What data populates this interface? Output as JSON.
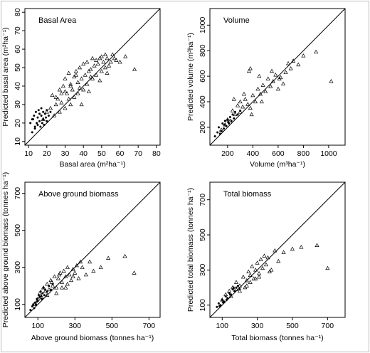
{
  "chart_data": [
    {
      "type": "scatter",
      "title": "Basal Area",
      "xlabel": "Basal area (m²ha⁻¹)",
      "ylabel": "Predicted basal area (m²ha⁻¹)",
      "xlim": [
        8,
        82
      ],
      "ylim": [
        8,
        82
      ],
      "xticks": [
        10,
        20,
        30,
        40,
        50,
        60,
        70,
        80
      ],
      "yticks": [
        10,
        20,
        30,
        40,
        50,
        60,
        70,
        80
      ],
      "reference_line": "1:1",
      "series": [
        {
          "marker": "dot",
          "x": [
            11,
            12,
            12.5,
            13,
            13.5,
            14,
            14.5,
            15,
            15,
            15.5,
            16,
            16,
            16.5,
            17,
            17,
            17.5,
            18,
            18,
            18.5,
            19,
            19.5,
            20,
            20,
            21,
            22,
            12,
            13.5
          ],
          "y": [
            20,
            15,
            22,
            24,
            18,
            26,
            20,
            19,
            23,
            27,
            25,
            21,
            18,
            24,
            28,
            20,
            22,
            26,
            19,
            25,
            23,
            27,
            21,
            24,
            26,
            22,
            17
          ]
        },
        {
          "marker": "triangle",
          "x": [
            18,
            20,
            22,
            23,
            24,
            25,
            26,
            27,
            27,
            28,
            29,
            30,
            30,
            31,
            32,
            32,
            33,
            33,
            34,
            35,
            35,
            36,
            37,
            37,
            38,
            38,
            39,
            40,
            40,
            41,
            42,
            42,
            43,
            43,
            44,
            45,
            45,
            46,
            47,
            47,
            48,
            49,
            50,
            50,
            51,
            52,
            52,
            53,
            54,
            55,
            56,
            57,
            58,
            60,
            63,
            68,
            30,
            33,
            36,
            44,
            49,
            53,
            25,
            28,
            39
          ],
          "y": [
            22,
            26,
            28,
            35,
            24,
            30,
            33,
            26,
            38,
            31,
            40,
            28,
            44,
            36,
            33,
            47,
            41,
            30,
            38,
            45,
            34,
            48,
            42,
            36,
            50,
            39,
            44,
            52,
            38,
            46,
            41,
            53,
            48,
            37,
            49,
            55,
            44,
            51,
            46,
            54,
            52,
            43,
            48,
            56,
            53,
            50,
            57,
            55,
            51,
            53,
            57,
            55,
            54,
            53,
            56,
            49,
            37,
            40,
            46,
            45,
            55,
            47,
            34,
            36,
            30
          ]
        }
      ]
    },
    {
      "type": "scatter",
      "title": "Volume",
      "xlabel": "Volume (m³ha⁻¹)",
      "ylabel": "Predicted volume (m³ha⁻¹)",
      "xlim": [
        60,
        1130
      ],
      "ylim": [
        60,
        1130
      ],
      "xticks": [
        200,
        400,
        600,
        800,
        1000
      ],
      "yticks": [
        200,
        400,
        600,
        800,
        1000
      ],
      "reference_line": "1:1",
      "series": [
        {
          "marker": "dot",
          "x": [
            100,
            120,
            130,
            150,
            160,
            170,
            180,
            190,
            200,
            210,
            220,
            230,
            240,
            250,
            260,
            280,
            300,
            140,
            175,
            205
          ],
          "y": [
            130,
            160,
            200,
            170,
            230,
            190,
            250,
            210,
            260,
            230,
            280,
            250,
            300,
            270,
            320,
            300,
            330,
            150,
            220,
            240
          ]
        },
        {
          "marker": "triangle",
          "x": [
            150,
            180,
            200,
            220,
            240,
            260,
            280,
            300,
            300,
            320,
            340,
            360,
            370,
            380,
            400,
            420,
            440,
            450,
            460,
            480,
            500,
            520,
            540,
            560,
            580,
            600,
            620,
            640,
            660,
            680,
            700,
            720,
            760,
            800,
            900,
            1020,
            380,
            390,
            250,
            330,
            470,
            550,
            610
          ],
          "y": [
            180,
            220,
            260,
            250,
            330,
            300,
            370,
            320,
            400,
            360,
            420,
            380,
            640,
            660,
            450,
            400,
            500,
            600,
            460,
            530,
            480,
            580,
            520,
            560,
            610,
            500,
            590,
            540,
            630,
            700,
            660,
            720,
            690,
            760,
            790,
            560,
            350,
            300,
            420,
            460,
            400,
            640,
            580
          ]
        }
      ]
    },
    {
      "type": "scatter",
      "title": "Above ground biomass",
      "xlabel": "Above ground biomass (tonnes ha⁻¹)",
      "ylabel": "Predicted above ground biomass (tonnes ha⁻¹)",
      "xlim": [
        30,
        760
      ],
      "ylim": [
        30,
        760
      ],
      "xticks": [
        100,
        300,
        500,
        700
      ],
      "yticks": [
        100,
        300,
        500,
        700
      ],
      "reference_line": "1:1",
      "series": [
        {
          "marker": "dot",
          "x": [
            60,
            70,
            80,
            85,
            90,
            95,
            100,
            105,
            110,
            115,
            120,
            125,
            130,
            135,
            140,
            150,
            160,
            170,
            180,
            75,
            95,
            118
          ],
          "y": [
            70,
            90,
            80,
            110,
            100,
            130,
            120,
            150,
            140,
            170,
            130,
            160,
            190,
            150,
            180,
            170,
            200,
            180,
            210,
            100,
            115,
            145
          ]
        },
        {
          "marker": "triangle",
          "x": [
            80,
            100,
            110,
            120,
            130,
            140,
            150,
            160,
            170,
            180,
            190,
            200,
            210,
            220,
            230,
            240,
            250,
            260,
            270,
            280,
            290,
            300,
            310,
            320,
            340,
            360,
            380,
            400,
            440,
            480,
            570,
            620,
            200,
            230,
            260,
            150,
            175,
            215,
            250,
            290,
            330
          ],
          "y": [
            100,
            130,
            160,
            140,
            190,
            170,
            210,
            180,
            230,
            200,
            250,
            190,
            240,
            270,
            220,
            280,
            250,
            300,
            260,
            230,
            290,
            270,
            310,
            240,
            300,
            260,
            330,
            280,
            300,
            350,
            360,
            270,
            160,
            190,
            210,
            150,
            220,
            260,
            190,
            250,
            330
          ]
        }
      ]
    },
    {
      "type": "scatter",
      "title": "Total biomass",
      "xlabel": "Total biomass (tonnes ha⁻¹)",
      "ylabel": "Predicted total biomass (tonnes ha⁻¹)",
      "xlim": [
        30,
        800
      ],
      "ylim": [
        30,
        800
      ],
      "xticks": [
        100,
        300,
        500,
        700
      ],
      "yticks": [
        100,
        300,
        500,
        700
      ],
      "reference_line": "1:1",
      "series": [
        {
          "marker": "dot",
          "x": [
            70,
            80,
            90,
            100,
            110,
            120,
            130,
            140,
            150,
            160,
            170,
            180,
            190,
            200,
            85,
            105,
            125,
            145,
            165
          ],
          "y": [
            90,
            110,
            100,
            130,
            120,
            150,
            140,
            170,
            160,
            190,
            180,
            200,
            210,
            190,
            95,
            115,
            130,
            160,
            200
          ]
        },
        {
          "marker": "triangle",
          "x": [
            100,
            120,
            140,
            160,
            180,
            200,
            220,
            240,
            250,
            260,
            270,
            280,
            290,
            300,
            310,
            320,
            330,
            340,
            350,
            360,
            380,
            400,
            420,
            450,
            500,
            550,
            640,
            700,
            200,
            230,
            260,
            290,
            150,
            180,
            240,
            310,
            370
          ],
          "y": [
            130,
            160,
            180,
            200,
            230,
            210,
            260,
            240,
            290,
            270,
            320,
            250,
            300,
            340,
            280,
            360,
            310,
            380,
            330,
            370,
            300,
            410,
            350,
            400,
            420,
            430,
            440,
            310,
            180,
            200,
            230,
            250,
            150,
            190,
            210,
            260,
            290
          ]
        }
      ]
    }
  ]
}
